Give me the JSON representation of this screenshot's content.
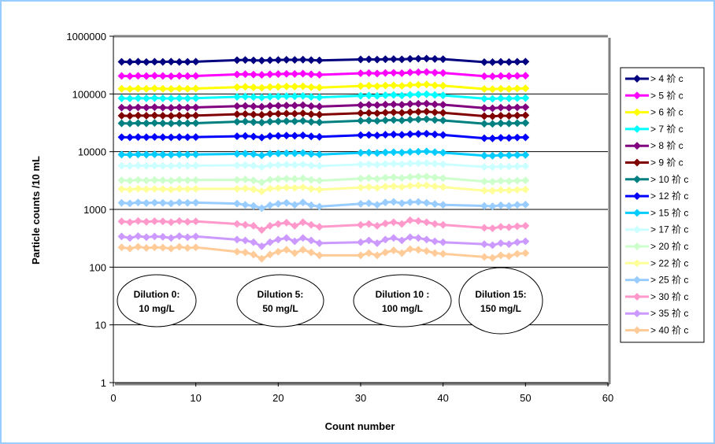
{
  "chart_data": {
    "type": "line",
    "xlabel": "Count number",
    "ylabel": "Particle counts /10 mL",
    "xlim": [
      0,
      60
    ],
    "ylim": [
      1,
      1000000
    ],
    "yscale": "log",
    "x_ticks": [
      "0",
      "10",
      "20",
      "30",
      "40",
      "50",
      "60"
    ],
    "y_ticks": [
      "1",
      "10",
      "100",
      "1000",
      "10000",
      "100000",
      "1000000"
    ],
    "legend_position": "right",
    "gridlines": "horizontal",
    "x": [
      1,
      2,
      3,
      4,
      5,
      6,
      7,
      8,
      9,
      10,
      15,
      16,
      17,
      18,
      19,
      20,
      21,
      22,
      23,
      24,
      25,
      30,
      31,
      32,
      33,
      34,
      35,
      36,
      37,
      38,
      39,
      40,
      45,
      46,
      47,
      48,
      49,
      50
    ],
    "series": [
      {
        "name": "> 4 祄 c",
        "color": "#000080",
        "values": [
          360000,
          358000,
          362000,
          357000,
          361000,
          359000,
          363000,
          358000,
          360000,
          362000,
          385000,
          388000,
          382000,
          379000,
          384000,
          387000,
          391000,
          389000,
          393000,
          386000,
          381000,
          396000,
          398000,
          394000,
          399000,
          401000,
          397000,
          405000,
          408000,
          410000,
          404000,
          400000,
          356000,
          355000,
          359000,
          357000,
          361000,
          363000
        ]
      },
      {
        "name": "> 5 祄 c",
        "color": "#ff00ff",
        "values": [
          205000,
          203000,
          206000,
          204000,
          207000,
          205000,
          203000,
          206000,
          204000,
          205000,
          218000,
          220000,
          217000,
          214000,
          219000,
          221000,
          223000,
          222000,
          225000,
          219000,
          215000,
          228000,
          230000,
          226000,
          231000,
          233000,
          229000,
          236000,
          238000,
          240000,
          234000,
          231000,
          203000,
          202000,
          205000,
          204000,
          206000,
          207000
        ]
      },
      {
        "name": "> 6 祄 c",
        "color": "#ffff00",
        "values": [
          123000,
          122000,
          124000,
          123000,
          125000,
          123000,
          122000,
          124000,
          123000,
          124000,
          131000,
          133000,
          130000,
          128000,
          132000,
          133000,
          135000,
          134000,
          136000,
          131000,
          129000,
          137000,
          139000,
          136000,
          140000,
          141000,
          138000,
          143000,
          144000,
          146000,
          141000,
          139000,
          122000,
          121000,
          123000,
          122000,
          124000,
          125000
        ]
      },
      {
        "name": "> 7 祄 c",
        "color": "#00ffff",
        "values": [
          84000,
          83500,
          84500,
          84000,
          85000,
          84000,
          83500,
          84500,
          84000,
          84500,
          89000,
          90000,
          88500,
          87000,
          89500,
          90500,
          91500,
          91000,
          92500,
          89000,
          87500,
          93000,
          94000,
          92500,
          95000,
          96000,
          94000,
          97000,
          98000,
          99000,
          96000,
          94500,
          83000,
          82500,
          84000,
          83500,
          84500,
          85000
        ]
      },
      {
        "name": "> 8 祄 c",
        "color": "#800080",
        "values": [
          58000,
          57500,
          58500,
          58000,
          59000,
          58000,
          57500,
          58500,
          58000,
          58500,
          61500,
          62000,
          61000,
          60000,
          62000,
          62500,
          63000,
          63000,
          64000,
          61500,
          60500,
          64000,
          65000,
          64000,
          65500,
          66000,
          65000,
          67000,
          67500,
          68000,
          66000,
          65000,
          57000,
          56500,
          58000,
          57500,
          58500,
          59000
        ]
      },
      {
        "name": "> 9 祄 c",
        "color": "#800000",
        "values": [
          42000,
          41700,
          42300,
          42000,
          42500,
          42000,
          41700,
          42300,
          42000,
          42300,
          44500,
          45000,
          44000,
          43500,
          45000,
          45300,
          45800,
          45500,
          46200,
          44500,
          43800,
          46500,
          47000,
          46200,
          47500,
          48000,
          47200,
          48500,
          49000,
          49500,
          48000,
          47200,
          41300,
          41000,
          42000,
          41700,
          42300,
          42700
        ]
      },
      {
        "name": "> 10 祄 c",
        "color": "#008080",
        "values": [
          31000,
          30800,
          31200,
          31000,
          31400,
          31000,
          30800,
          31200,
          31000,
          31200,
          33000,
          33300,
          32500,
          32000,
          33200,
          33500,
          33800,
          33600,
          34200,
          32800,
          32300,
          34300,
          34700,
          34100,
          35000,
          35400,
          34800,
          35800,
          36200,
          36600,
          35400,
          34800,
          30500,
          30300,
          31000,
          30800,
          31200,
          31500
        ]
      },
      {
        "name": "> 12 祄 c",
        "color": "#0000ff",
        "values": [
          17800,
          17700,
          17900,
          17800,
          18000,
          17800,
          17700,
          17900,
          17800,
          17900,
          18500,
          18700,
          18300,
          17600,
          18600,
          18800,
          19000,
          18900,
          19200,
          18400,
          18100,
          19300,
          19500,
          19100,
          19700,
          19900,
          19600,
          20100,
          20300,
          20500,
          19900,
          19500,
          17100,
          17000,
          17400,
          17300,
          17600,
          17700
        ]
      },
      {
        "name": "> 15 祄 c",
        "color": "#00ccff",
        "values": [
          8900,
          8850,
          8950,
          8900,
          8980,
          8900,
          8850,
          8950,
          8900,
          8950,
          9150,
          9250,
          9050,
          8600,
          9200,
          9300,
          9400,
          9350,
          9500,
          9100,
          8950,
          9550,
          9650,
          9450,
          9700,
          9800,
          9650,
          9900,
          10000,
          10100,
          9800,
          9600,
          8550,
          8500,
          8700,
          8650,
          8750,
          8800
        ]
      },
      {
        "name": "> 17 祄 c",
        "color": "#ccffff",
        "values": [
          5700,
          5650,
          5750,
          5680,
          5720,
          5700,
          5650,
          5750,
          5700,
          5730,
          5800,
          5850,
          5720,
          5450,
          5820,
          5880,
          5950,
          5900,
          6000,
          5780,
          5650,
          6000,
          6080,
          5950,
          6120,
          6180,
          6080,
          6250,
          6300,
          6350,
          6180,
          6050,
          5450,
          5420,
          5550,
          5500,
          5580,
          5620
        ]
      },
      {
        "name": "> 20 祄 c",
        "color": "#ccffcc",
        "values": [
          3200,
          3150,
          3250,
          3180,
          3220,
          3200,
          3150,
          3250,
          3200,
          3230,
          3250,
          3300,
          3180,
          2950,
          3280,
          3350,
          3400,
          3380,
          3450,
          3250,
          3150,
          3420,
          3500,
          3380,
          3550,
          3600,
          3500,
          3650,
          3700,
          3720,
          3580,
          3480,
          3050,
          3020,
          3120,
          3080,
          3150,
          3180
        ]
      },
      {
        "name": "> 22 祄 c",
        "color": "#ffff99",
        "values": [
          2250,
          2200,
          2280,
          2230,
          2260,
          2250,
          2200,
          2280,
          2250,
          2270,
          2270,
          2300,
          2220,
          2050,
          2290,
          2340,
          2380,
          2360,
          2420,
          2270,
          2200,
          2390,
          2450,
          2360,
          2490,
          2520,
          2450,
          2560,
          2600,
          2620,
          2510,
          2440,
          2120,
          2100,
          2170,
          2140,
          2190,
          2210
        ]
      },
      {
        "name": "> 25 祄 c",
        "color": "#99ccff",
        "values": [
          1300,
          1270,
          1320,
          1290,
          1310,
          1300,
          1270,
          1320,
          1300,
          1310,
          1260,
          1200,
          1150,
          1050,
          1180,
          1250,
          1300,
          1200,
          1320,
          1180,
          1120,
          1250,
          1280,
          1200,
          1320,
          1350,
          1280,
          1330,
          1350,
          1300,
          1240,
          1200,
          1150,
          1130,
          1180,
          1150,
          1200,
          1210
        ]
      },
      {
        "name": "> 30 祄 c",
        "color": "#ff99cc",
        "values": [
          620,
          600,
          630,
          610,
          625,
          620,
          600,
          630,
          610,
          620,
          560,
          540,
          520,
          440,
          520,
          560,
          590,
          520,
          600,
          540,
          500,
          540,
          560,
          520,
          570,
          600,
          560,
          650,
          630,
          600,
          560,
          540,
          480,
          470,
          500,
          490,
          510,
          520
        ]
      },
      {
        "name": "> 35 祄 c",
        "color": "#cc99ff",
        "values": [
          340,
          320,
          345,
          330,
          340,
          335,
          320,
          345,
          330,
          340,
          300,
          290,
          270,
          230,
          270,
          300,
          320,
          280,
          320,
          290,
          260,
          270,
          290,
          260,
          300,
          320,
          290,
          330,
          320,
          300,
          280,
          270,
          250,
          240,
          260,
          250,
          270,
          280
        ]
      },
      {
        "name": "> 40 祄 c",
        "color": "#ffcc99",
        "values": [
          220,
          210,
          225,
          215,
          220,
          218,
          210,
          225,
          215,
          220,
          185,
          180,
          165,
          140,
          165,
          185,
          200,
          175,
          200,
          180,
          160,
          160,
          175,
          160,
          180,
          195,
          175,
          205,
          200,
          190,
          175,
          170,
          150,
          145,
          160,
          155,
          170,
          175
        ]
      }
    ],
    "annotations": [
      {
        "lines": [
          "Dilution 0:",
          "10 mg/L"
        ]
      },
      {
        "lines": [
          "Dilution 5:",
          "50 mg/L"
        ]
      },
      {
        "lines": [
          "Dilution 10 :",
          "100 mg/L"
        ]
      },
      {
        "lines": [
          "Dilution 15:",
          "150 mg/L"
        ]
      }
    ]
  }
}
